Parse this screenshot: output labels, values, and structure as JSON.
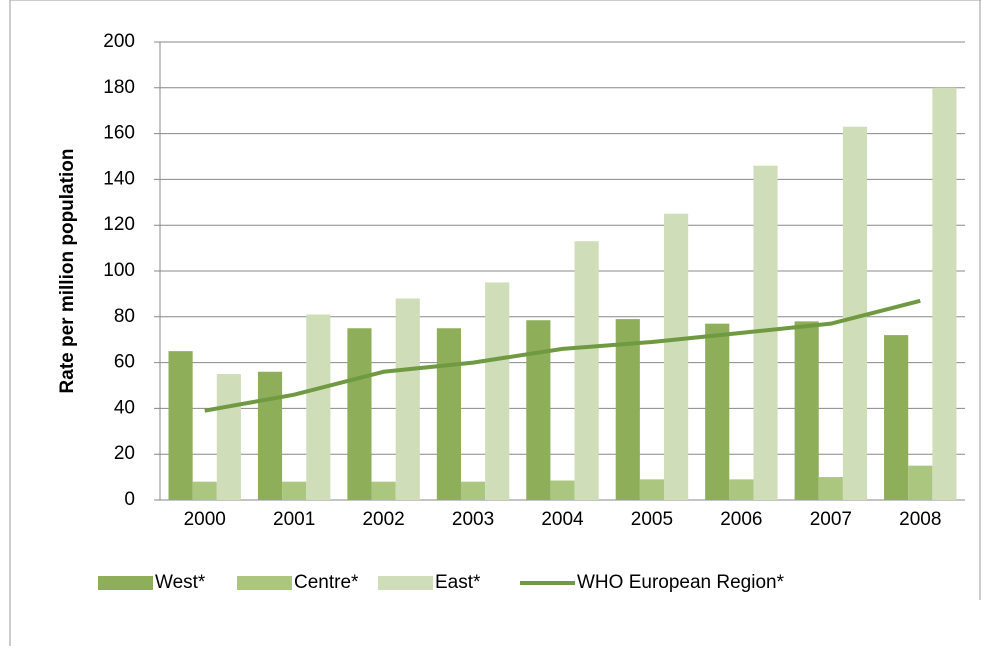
{
  "chart_data": {
    "type": "bar",
    "y_label": "Rate per million population",
    "categories": [
      "2000",
      "2001",
      "2002",
      "2003",
      "2004",
      "2005",
      "2006",
      "2007",
      "2008"
    ],
    "series": [
      {
        "name": "West*",
        "color": "#8fae5a",
        "type": "bar",
        "values": [
          65,
          56,
          75,
          75,
          78.5,
          79,
          77,
          78,
          72
        ]
      },
      {
        "name": "Centre*",
        "color": "#aac67f",
        "type": "bar",
        "values": [
          8,
          8,
          8,
          8,
          8.5,
          9,
          9,
          10,
          15
        ]
      },
      {
        "name": "East*",
        "color": "#d0ddb9",
        "type": "bar",
        "values": [
          55,
          81,
          88,
          95,
          113,
          125,
          146,
          163,
          180
        ]
      },
      {
        "name": "WHO European Region*",
        "color": "#6f9a42",
        "type": "line",
        "values": [
          39,
          46,
          56,
          60,
          66,
          69,
          73,
          77,
          87
        ]
      }
    ],
    "ylim": [
      0,
      200
    ],
    "yticks": [
      0,
      20,
      40,
      60,
      80,
      100,
      120,
      140,
      160,
      180,
      200
    ],
    "grid": true,
    "legend": "bottom"
  }
}
